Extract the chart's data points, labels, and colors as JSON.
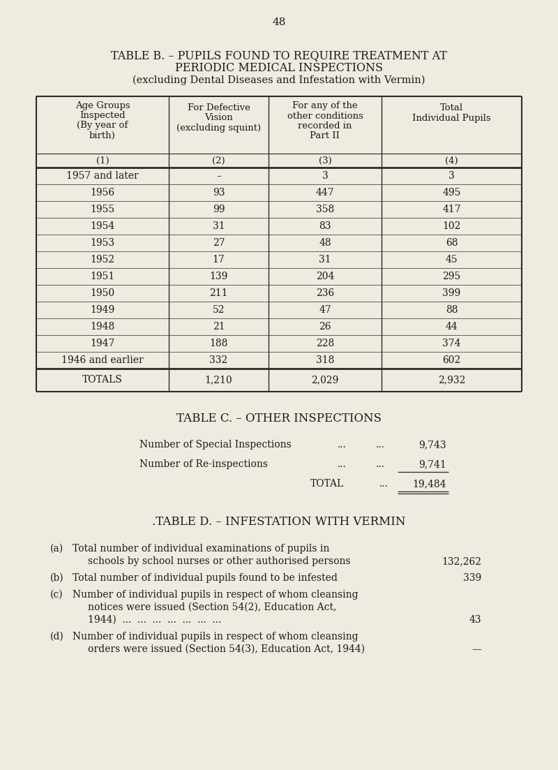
{
  "page_number": "48",
  "bg_color": "#f0ebe0",
  "table_b_title_line1": "TABLE B. – PUPILS FOUND TO REQUIRE TREATMENT AT",
  "table_b_title_line2": "PERIODIC MEDICAL INSPECTIONS",
  "table_b_title_line3": "(excluding Dental Diseases and Infestation with Vermin)",
  "rows": [
    [
      "1957 and later",
      "–",
      "3",
      "3"
    ],
    [
      "1956",
      "93",
      "447",
      "495"
    ],
    [
      "1955",
      "99",
      "358",
      "417"
    ],
    [
      "1954",
      "31",
      "83",
      "102"
    ],
    [
      "1953",
      "27",
      "48",
      "68"
    ],
    [
      "1952",
      "17",
      "31",
      "45"
    ],
    [
      "1951",
      "139",
      "204",
      "295"
    ],
    [
      "1950",
      "211",
      "236",
      "399"
    ],
    [
      "1949",
      "52",
      "47",
      "88"
    ],
    [
      "1948",
      "21",
      "26",
      "44"
    ],
    [
      "1947",
      "188",
      "228",
      "374"
    ],
    [
      "1946 and earlier",
      "332",
      "318",
      "602"
    ]
  ],
  "totals_row": [
    "TOTALS",
    "1,210",
    "2,029",
    "2,932"
  ],
  "table_c_title": "TABLE C. – OTHER INSPECTIONS",
  "table_c_row1_label": "Number of Special Inspections",
  "table_c_row1_value": "9,743",
  "table_c_row2_label": "Number of Re-inspections",
  "table_c_row2_value": "9,741",
  "table_c_total_value": "19,484",
  "table_d_title": ".TABLE D. – INFESTATION WITH VERMIN",
  "text_color": "#1a1a1a",
  "border_color": "#2a2a2a"
}
